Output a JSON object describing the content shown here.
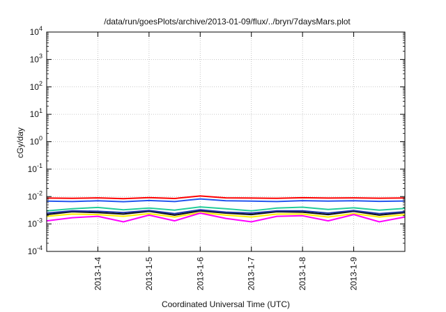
{
  "chart_data": {
    "type": "line",
    "title": "/data/run/goesPlots/archive/2013-01-09/flux/../bryn/7daysMars.plot",
    "xlabel": "Coordinated Universal Time (UTC)",
    "ylabel": "cGy/day",
    "yscale": "log",
    "ylim": [
      0.0001,
      10000
    ],
    "xlim": [
      "2013-01-03T00:00",
      "2013-01-10T00:00"
    ],
    "y_ticks": [
      {
        "mantissa": "10",
        "exp": "-4",
        "value": 0.0001
      },
      {
        "mantissa": "10",
        "exp": "-3",
        "value": 0.001
      },
      {
        "mantissa": "10",
        "exp": "-2",
        "value": 0.01
      },
      {
        "mantissa": "10",
        "exp": "-1",
        "value": 0.1
      },
      {
        "mantissa": "10",
        "exp": "0",
        "value": 1
      },
      {
        "mantissa": "10",
        "exp": "1",
        "value": 10
      },
      {
        "mantissa": "10",
        "exp": "2",
        "value": 100
      },
      {
        "mantissa": "10",
        "exp": "3",
        "value": 1000
      },
      {
        "mantissa": "10",
        "exp": "4",
        "value": 10000
      }
    ],
    "x_ticks": [
      {
        "label": "2013-1-4",
        "value": "2013-01-04T00:00"
      },
      {
        "label": "2013-1-5",
        "value": "2013-01-05T00:00"
      },
      {
        "label": "2013-1-6",
        "value": "2013-01-06T00:00"
      },
      {
        "label": "2013-1-7",
        "value": "2013-01-07T00:00"
      },
      {
        "label": "2013-1-8",
        "value": "2013-01-08T00:00"
      },
      {
        "label": "2013-1-9",
        "value": "2013-01-09T00:00"
      }
    ],
    "grid": true,
    "series": [
      {
        "color": "#ff0000",
        "x": [
          "2013-01-03T00:00",
          "2013-01-03T12:00",
          "2013-01-04T00:00",
          "2013-01-04T12:00",
          "2013-01-05T00:00",
          "2013-01-05T12:00",
          "2013-01-06T00:00",
          "2013-01-06T12:00",
          "2013-01-07T00:00",
          "2013-01-07T12:00",
          "2013-01-08T00:00",
          "2013-01-08T12:00",
          "2013-01-09T00:00",
          "2013-01-09T12:00",
          "2013-01-10T00:00"
        ],
        "y": [
          0.0088,
          0.0086,
          0.009,
          0.0084,
          0.0092,
          0.0085,
          0.0105,
          0.009,
          0.0088,
          0.0086,
          0.0091,
          0.0088,
          0.009,
          0.0087,
          0.0089
        ]
      },
      {
        "color": "#2255ee",
        "x": [
          "2013-01-03T00:00",
          "2013-01-03T12:00",
          "2013-01-04T00:00",
          "2013-01-04T12:00",
          "2013-01-05T00:00",
          "2013-01-05T12:00",
          "2013-01-06T00:00",
          "2013-01-06T12:00",
          "2013-01-07T00:00",
          "2013-01-07T12:00",
          "2013-01-08T00:00",
          "2013-01-08T12:00",
          "2013-01-09T00:00",
          "2013-01-09T12:00",
          "2013-01-10T00:00"
        ],
        "y": [
          0.0068,
          0.0066,
          0.007,
          0.0065,
          0.0072,
          0.0066,
          0.0082,
          0.007,
          0.0068,
          0.0066,
          0.0071,
          0.0068,
          0.007,
          0.0067,
          0.0069
        ]
      },
      {
        "color": "#22cc99",
        "x": [
          "2013-01-03T00:00",
          "2013-01-03T12:00",
          "2013-01-04T00:00",
          "2013-01-04T12:00",
          "2013-01-05T00:00",
          "2013-01-05T12:00",
          "2013-01-06T00:00",
          "2013-01-06T12:00",
          "2013-01-07T00:00",
          "2013-01-07T12:00",
          "2013-01-08T00:00",
          "2013-01-08T12:00",
          "2013-01-09T00:00",
          "2013-01-09T12:00",
          "2013-01-10T00:00"
        ],
        "y": [
          0.003,
          0.0036,
          0.004,
          0.0033,
          0.0038,
          0.0032,
          0.0042,
          0.0036,
          0.003,
          0.0038,
          0.0041,
          0.0034,
          0.0039,
          0.0032,
          0.0037
        ]
      },
      {
        "color": "#111111",
        "x": [
          "2013-01-03T00:00",
          "2013-01-03T12:00",
          "2013-01-04T00:00",
          "2013-01-04T12:00",
          "2013-01-05T00:00",
          "2013-01-05T12:00",
          "2013-01-06T00:00",
          "2013-01-06T12:00",
          "2013-01-07T00:00",
          "2013-01-07T12:00",
          "2013-01-08T00:00",
          "2013-01-08T12:00",
          "2013-01-09T00:00",
          "2013-01-09T12:00",
          "2013-01-10T00:00"
        ],
        "y": [
          0.0022,
          0.0028,
          0.0026,
          0.0023,
          0.0029,
          0.0021,
          0.003,
          0.0025,
          0.0022,
          0.0028,
          0.0027,
          0.0022,
          0.0029,
          0.0021,
          0.0026
        ]
      },
      {
        "color": "#2233aa",
        "x": [
          "2013-01-03T00:00",
          "2013-01-03T12:00",
          "2013-01-04T00:00",
          "2013-01-04T12:00",
          "2013-01-05T00:00",
          "2013-01-05T12:00",
          "2013-01-06T00:00",
          "2013-01-06T12:00",
          "2013-01-07T00:00",
          "2013-01-07T12:00",
          "2013-01-08T00:00",
          "2013-01-08T12:00",
          "2013-01-09T00:00",
          "2013-01-09T12:00",
          "2013-01-10T00:00"
        ],
        "y": [
          0.0025,
          0.003,
          0.0029,
          0.0026,
          0.0031,
          0.0024,
          0.0033,
          0.0027,
          0.0025,
          0.003,
          0.003,
          0.0025,
          0.0031,
          0.0024,
          0.0028
        ]
      },
      {
        "color": "#ffee00",
        "x": [
          "2013-01-03T00:00",
          "2013-01-03T12:00",
          "2013-01-04T00:00",
          "2013-01-04T12:00",
          "2013-01-05T00:00",
          "2013-01-05T12:00",
          "2013-01-06T00:00",
          "2013-01-06T12:00",
          "2013-01-07T00:00",
          "2013-01-07T12:00",
          "2013-01-08T00:00",
          "2013-01-08T12:00",
          "2013-01-09T00:00",
          "2013-01-09T12:00",
          "2013-01-10T00:00"
        ],
        "y": [
          0.0019,
          0.0023,
          0.0022,
          0.0019,
          0.0024,
          0.0018,
          0.0026,
          0.0021,
          0.0018,
          0.0023,
          0.0023,
          0.0018,
          0.0024,
          0.0018,
          0.0022
        ]
      },
      {
        "color": "#ff00ff",
        "x": [
          "2013-01-03T00:00",
          "2013-01-03T12:00",
          "2013-01-04T00:00",
          "2013-01-04T12:00",
          "2013-01-05T00:00",
          "2013-01-05T12:00",
          "2013-01-06T00:00",
          "2013-01-06T12:00",
          "2013-01-07T00:00",
          "2013-01-07T12:00",
          "2013-01-08T00:00",
          "2013-01-08T12:00",
          "2013-01-09T00:00",
          "2013-01-09T12:00",
          "2013-01-10T00:00"
        ],
        "y": [
          0.0013,
          0.0017,
          0.0019,
          0.0012,
          0.0021,
          0.0013,
          0.0025,
          0.0016,
          0.0012,
          0.0019,
          0.002,
          0.0013,
          0.0022,
          0.0012,
          0.0018
        ]
      }
    ]
  }
}
